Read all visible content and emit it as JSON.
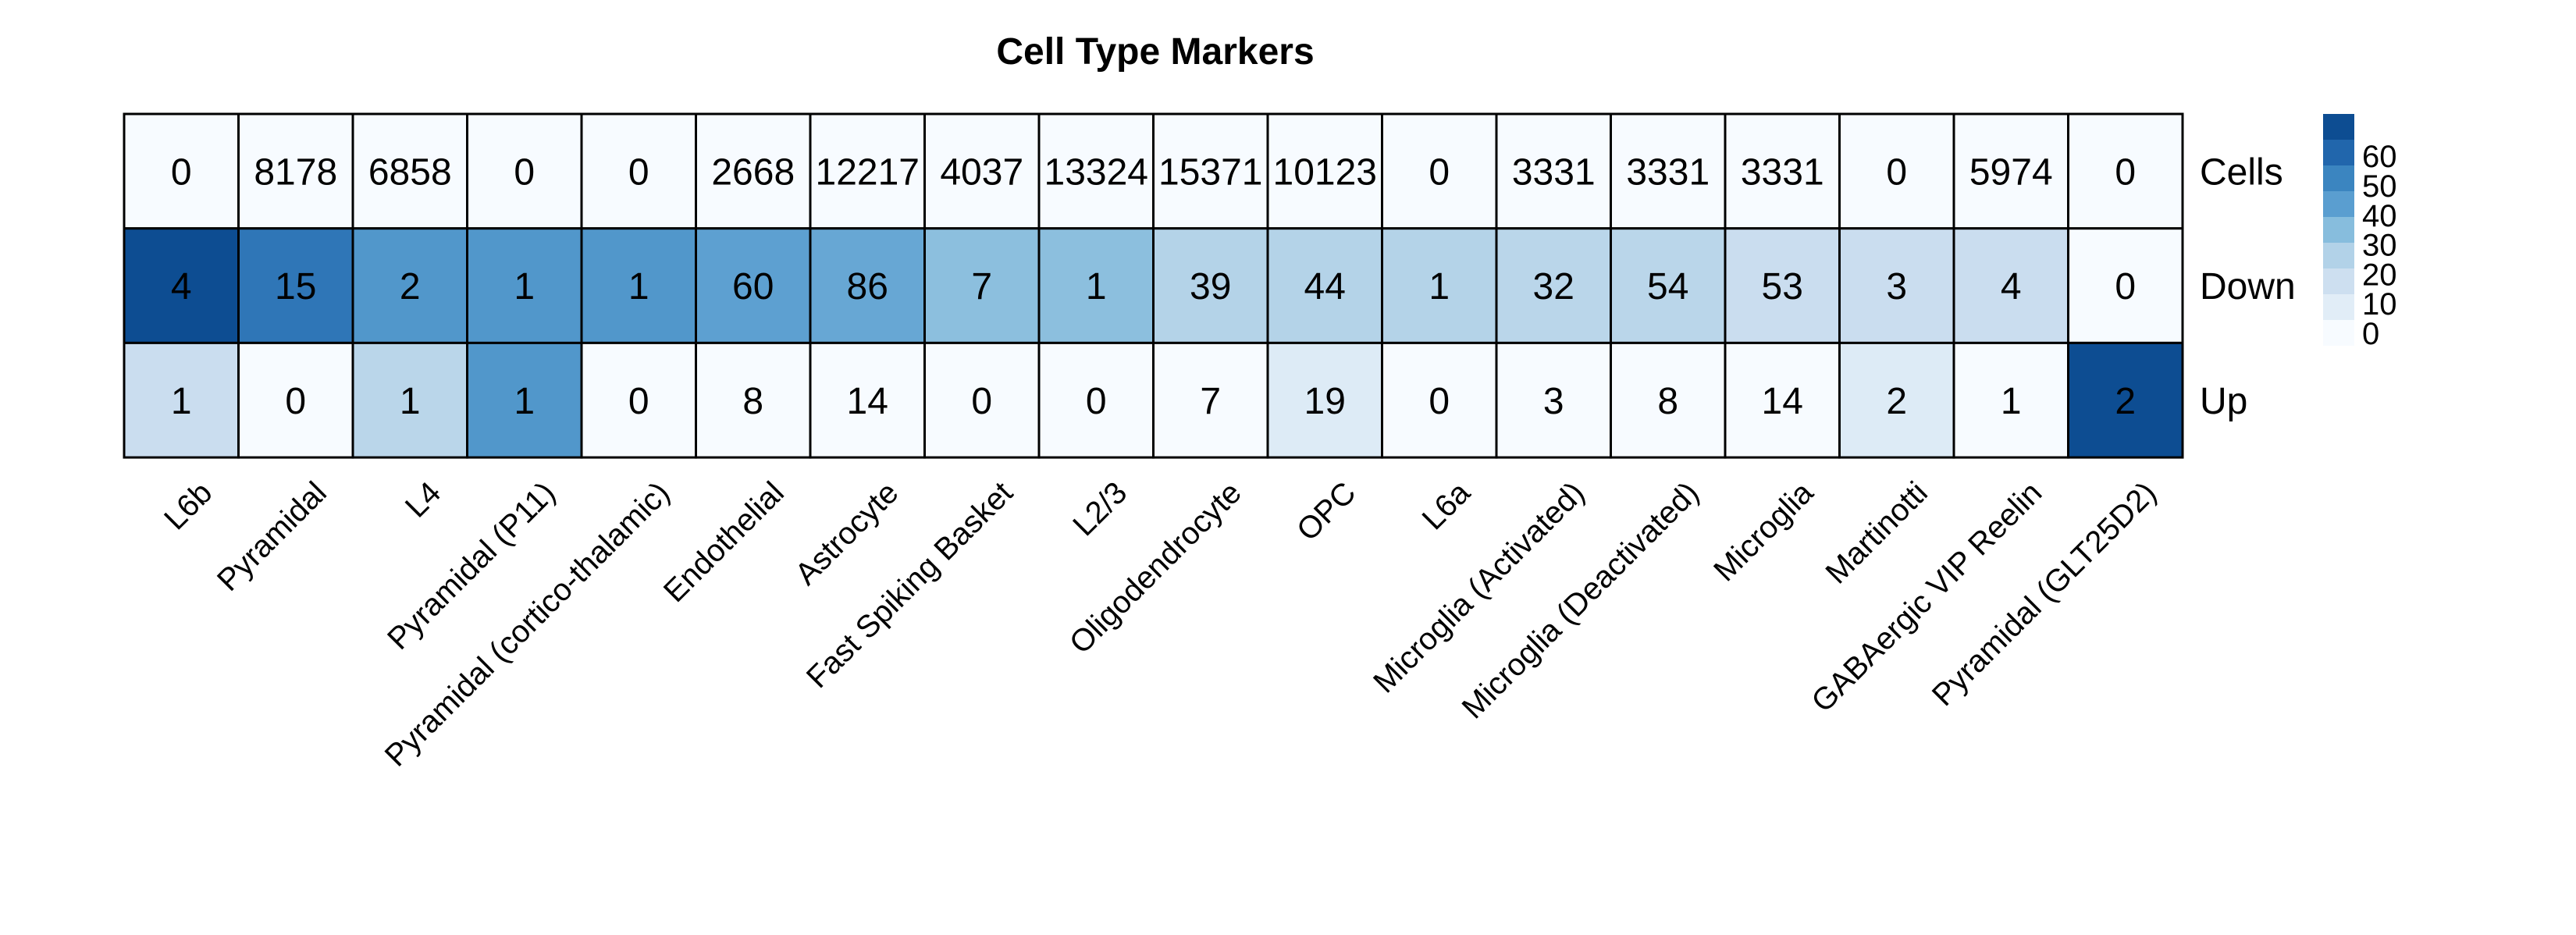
{
  "chart_data": {
    "type": "heatmap",
    "title": "Cell Type Markers",
    "columns": [
      "L6b",
      "Pyramidal",
      "L4",
      "Pyramidal (P11)",
      "Pyramidal (cortico-thalamic)",
      "Endothelial",
      "Astrocyte",
      "Fast Spiking Basket",
      "L2/3",
      "Oligodendrocyte",
      "OPC",
      "L6a",
      "Microglia (Activated)",
      "Microglia (Deactivated)",
      "Microglia",
      "Martinotti",
      "GABAergic VIP Reelin",
      "Pyramidal (GLT25D2)"
    ],
    "rows": [
      {
        "name": "Cells",
        "labels": [
          "0",
          "8178",
          "6858",
          "0",
          "0",
          "2668",
          "12217",
          "4037",
          "13324",
          "15371",
          "10123",
          "0",
          "3331",
          "3331",
          "3331",
          "0",
          "5974",
          "0"
        ],
        "color_values": [
          0,
          0,
          0,
          0,
          0,
          0,
          0,
          0,
          0,
          0,
          0,
          0,
          0,
          0,
          0,
          0,
          0,
          0
        ]
      },
      {
        "name": "Down",
        "labels": [
          "4",
          "15",
          "2",
          "1",
          "1",
          "60",
          "86",
          "7",
          "1",
          "39",
          "44",
          "1",
          "32",
          "54",
          "53",
          "3",
          "4",
          "0"
        ],
        "color_values": [
          68,
          55,
          45,
          45,
          45,
          42,
          40,
          33,
          33,
          25,
          25,
          25,
          23,
          23,
          18,
          18,
          18,
          0
        ]
      },
      {
        "name": "Up",
        "labels": [
          "1",
          "0",
          "1",
          "1",
          "0",
          "8",
          "14",
          "0",
          "0",
          "7",
          "19",
          "0",
          "3",
          "8",
          "14",
          "2",
          "1",
          "2"
        ],
        "color_values": [
          18,
          0,
          23,
          45,
          0,
          0,
          0,
          0,
          0,
          0,
          10,
          0,
          0,
          0,
          0,
          10,
          0,
          68
        ]
      }
    ],
    "legend": {
      "ticks": [
        "60",
        "50",
        "40",
        "30",
        "20",
        "10",
        "0"
      ],
      "tick_values": [
        60,
        50,
        40,
        30,
        20,
        10,
        0
      ],
      "range": [
        0,
        68
      ],
      "colors": [
        "#0d4d92",
        "#2166ac",
        "#3b85c0",
        "#5a9ed0",
        "#87bddd",
        "#b2d2e8",
        "#cddff0",
        "#e1edf7",
        "#f7fbff"
      ],
      "placement": "right"
    },
    "palette": {
      "low": "#f7fbff",
      "high": "#08519c",
      "border": "#000000"
    }
  }
}
